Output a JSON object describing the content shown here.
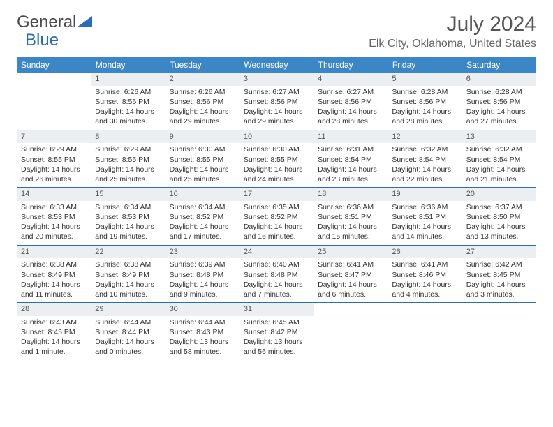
{
  "logo": {
    "general": "General",
    "blue": "Blue"
  },
  "title": "July 2024",
  "location": "Elk City, Oklahoma, United States",
  "colors": {
    "header_bg": "#3b86c7",
    "header_text": "#ffffff",
    "daynum_bg": "#eceff1",
    "row_border": "#2a6db5",
    "logo_blue": "#2a6db5",
    "text": "#333333"
  },
  "weekdays": [
    "Sunday",
    "Monday",
    "Tuesday",
    "Wednesday",
    "Thursday",
    "Friday",
    "Saturday"
  ],
  "weeks": [
    [
      null,
      {
        "n": "1",
        "sr": "6:26 AM",
        "ss": "8:56 PM",
        "dl": "14 hours and 30 minutes."
      },
      {
        "n": "2",
        "sr": "6:26 AM",
        "ss": "8:56 PM",
        "dl": "14 hours and 29 minutes."
      },
      {
        "n": "3",
        "sr": "6:27 AM",
        "ss": "8:56 PM",
        "dl": "14 hours and 29 minutes."
      },
      {
        "n": "4",
        "sr": "6:27 AM",
        "ss": "8:56 PM",
        "dl": "14 hours and 28 minutes."
      },
      {
        "n": "5",
        "sr": "6:28 AM",
        "ss": "8:56 PM",
        "dl": "14 hours and 28 minutes."
      },
      {
        "n": "6",
        "sr": "6:28 AM",
        "ss": "8:56 PM",
        "dl": "14 hours and 27 minutes."
      }
    ],
    [
      {
        "n": "7",
        "sr": "6:29 AM",
        "ss": "8:55 PM",
        "dl": "14 hours and 26 minutes."
      },
      {
        "n": "8",
        "sr": "6:29 AM",
        "ss": "8:55 PM",
        "dl": "14 hours and 25 minutes."
      },
      {
        "n": "9",
        "sr": "6:30 AM",
        "ss": "8:55 PM",
        "dl": "14 hours and 25 minutes."
      },
      {
        "n": "10",
        "sr": "6:30 AM",
        "ss": "8:55 PM",
        "dl": "14 hours and 24 minutes."
      },
      {
        "n": "11",
        "sr": "6:31 AM",
        "ss": "8:54 PM",
        "dl": "14 hours and 23 minutes."
      },
      {
        "n": "12",
        "sr": "6:32 AM",
        "ss": "8:54 PM",
        "dl": "14 hours and 22 minutes."
      },
      {
        "n": "13",
        "sr": "6:32 AM",
        "ss": "8:54 PM",
        "dl": "14 hours and 21 minutes."
      }
    ],
    [
      {
        "n": "14",
        "sr": "6:33 AM",
        "ss": "8:53 PM",
        "dl": "14 hours and 20 minutes."
      },
      {
        "n": "15",
        "sr": "6:34 AM",
        "ss": "8:53 PM",
        "dl": "14 hours and 19 minutes."
      },
      {
        "n": "16",
        "sr": "6:34 AM",
        "ss": "8:52 PM",
        "dl": "14 hours and 17 minutes."
      },
      {
        "n": "17",
        "sr": "6:35 AM",
        "ss": "8:52 PM",
        "dl": "14 hours and 16 minutes."
      },
      {
        "n": "18",
        "sr": "6:36 AM",
        "ss": "8:51 PM",
        "dl": "14 hours and 15 minutes."
      },
      {
        "n": "19",
        "sr": "6:36 AM",
        "ss": "8:51 PM",
        "dl": "14 hours and 14 minutes."
      },
      {
        "n": "20",
        "sr": "6:37 AM",
        "ss": "8:50 PM",
        "dl": "14 hours and 13 minutes."
      }
    ],
    [
      {
        "n": "21",
        "sr": "6:38 AM",
        "ss": "8:49 PM",
        "dl": "14 hours and 11 minutes."
      },
      {
        "n": "22",
        "sr": "6:38 AM",
        "ss": "8:49 PM",
        "dl": "14 hours and 10 minutes."
      },
      {
        "n": "23",
        "sr": "6:39 AM",
        "ss": "8:48 PM",
        "dl": "14 hours and 9 minutes."
      },
      {
        "n": "24",
        "sr": "6:40 AM",
        "ss": "8:48 PM",
        "dl": "14 hours and 7 minutes."
      },
      {
        "n": "25",
        "sr": "6:41 AM",
        "ss": "8:47 PM",
        "dl": "14 hours and 6 minutes."
      },
      {
        "n": "26",
        "sr": "6:41 AM",
        "ss": "8:46 PM",
        "dl": "14 hours and 4 minutes."
      },
      {
        "n": "27",
        "sr": "6:42 AM",
        "ss": "8:45 PM",
        "dl": "14 hours and 3 minutes."
      }
    ],
    [
      {
        "n": "28",
        "sr": "6:43 AM",
        "ss": "8:45 PM",
        "dl": "14 hours and 1 minute."
      },
      {
        "n": "29",
        "sr": "6:44 AM",
        "ss": "8:44 PM",
        "dl": "14 hours and 0 minutes."
      },
      {
        "n": "30",
        "sr": "6:44 AM",
        "ss": "8:43 PM",
        "dl": "13 hours and 58 minutes."
      },
      {
        "n": "31",
        "sr": "6:45 AM",
        "ss": "8:42 PM",
        "dl": "13 hours and 56 minutes."
      },
      null,
      null,
      null
    ]
  ],
  "labels": {
    "sunrise": "Sunrise:",
    "sunset": "Sunset:",
    "daylight": "Daylight:"
  }
}
